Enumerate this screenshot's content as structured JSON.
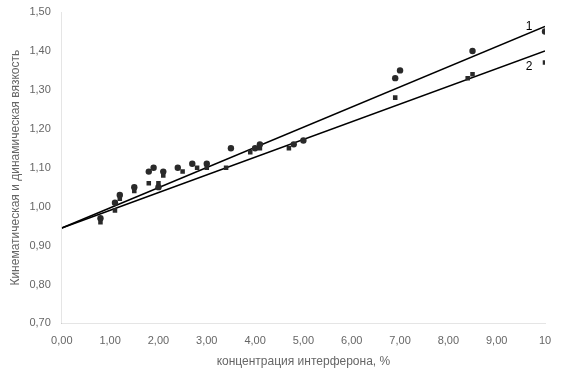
{
  "chart_data": {
    "type": "scatter",
    "xlabel": "концентрация интерферона, %",
    "ylabel": "Кинематическая и динамическая вязкость",
    "xlim": [
      0.0,
      10.0
    ],
    "ylim": [
      0.7,
      1.5
    ],
    "xticks": [
      {
        "value": 0.0,
        "label": "0,00"
      },
      {
        "value": 1.0,
        "label": "1,00"
      },
      {
        "value": 2.0,
        "label": "2,00"
      },
      {
        "value": 3.0,
        "label": "3,00"
      },
      {
        "value": 4.0,
        "label": "4,00"
      },
      {
        "value": 5.0,
        "label": "5,00"
      },
      {
        "value": 6.0,
        "label": "6,00"
      },
      {
        "value": 7.0,
        "label": "7,00"
      },
      {
        "value": 8.0,
        "label": "8,00"
      },
      {
        "value": 9.0,
        "label": "9,00"
      },
      10
    ],
    "yticks": [
      {
        "value": 0.7,
        "label": "0,70"
      },
      {
        "value": 0.8,
        "label": "0,80"
      },
      {
        "value": 0.9,
        "label": "0,90"
      },
      {
        "value": 1.0,
        "label": "1,00"
      },
      {
        "value": 1.1,
        "label": "1,10"
      },
      {
        "value": 1.2,
        "label": "1,20"
      },
      {
        "value": 1.3,
        "label": "1,30"
      },
      {
        "value": 1.4,
        "label": "1,40"
      },
      {
        "value": 1.5,
        "label": "1,50"
      }
    ],
    "grid": false,
    "series": [
      {
        "type": "line",
        "color": "#000000",
        "x": [
          0.0,
          10.0
        ],
        "values": [
          0.945,
          1.463
        ]
      },
      {
        "type": "line",
        "color": "#000000",
        "x": [
          0.0,
          10.0
        ],
        "values": [
          0.945,
          1.4
        ]
      },
      {
        "type": "scatter",
        "marker": "circle",
        "color": "#2a2a2a",
        "x": [
          0.8,
          1.1,
          1.2,
          1.5,
          1.8,
          1.9,
          2.0,
          2.1,
          2.4,
          2.7,
          3.0,
          3.5,
          4.0,
          4.1,
          4.8,
          5.0,
          6.9,
          7.0,
          8.5,
          10.0
        ],
        "values": [
          0.97,
          1.01,
          1.03,
          1.05,
          1.09,
          1.1,
          1.05,
          1.09,
          1.1,
          1.11,
          1.11,
          1.15,
          1.15,
          1.16,
          1.16,
          1.17,
          1.33,
          1.35,
          1.4,
          1.45
        ]
      },
      {
        "type": "scatter",
        "marker": "square",
        "color": "#2a2a2a",
        "x": [
          0.8,
          1.1,
          1.2,
          1.5,
          1.8,
          2.0,
          2.1,
          2.5,
          2.8,
          3.0,
          3.4,
          3.9,
          4.1,
          4.7,
          6.9,
          8.4,
          8.5,
          10.0
        ],
        "values": [
          0.96,
          0.99,
          1.02,
          1.04,
          1.06,
          1.06,
          1.08,
          1.09,
          1.1,
          1.1,
          1.1,
          1.14,
          1.15,
          1.15,
          1.28,
          1.33,
          1.34,
          1.37
        ]
      }
    ],
    "annotations": [
      {
        "text": "1",
        "x": 9.6,
        "y": 1.462
      },
      {
        "text": "2",
        "x": 9.6,
        "y": 1.36
      }
    ]
  }
}
